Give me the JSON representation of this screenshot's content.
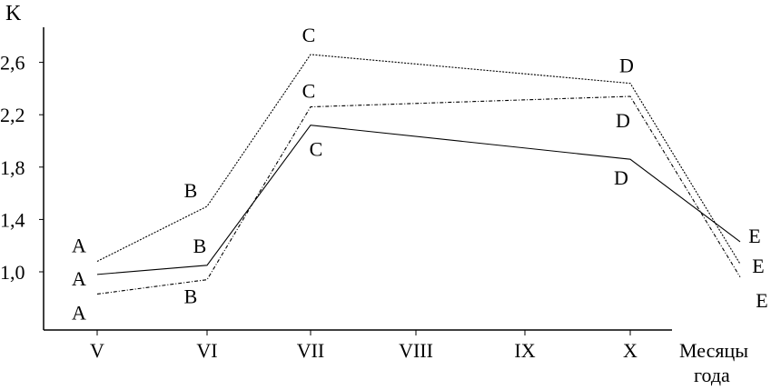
{
  "chart_data": {
    "type": "line",
    "title": "",
    "ylabel": "K",
    "xlabel": [
      "Месяцы",
      "года"
    ],
    "categories": [
      "V",
      "VI",
      "VII",
      "VIII",
      "IX",
      "X",
      ""
    ],
    "yticks": [
      "2,6",
      "2,2",
      "1,8",
      "1,4",
      "1,0"
    ],
    "ytick_values": [
      2.6,
      2.2,
      1.8,
      1.4,
      1.0
    ],
    "ylim": [
      0.6,
      2.8
    ],
    "grid": false,
    "series": [
      {
        "style": "dotted",
        "x": [
          0,
          1,
          2,
          5,
          6
        ],
        "values": [
          1.08,
          1.5,
          2.66,
          2.44,
          1.06
        ],
        "point_labels": [
          "A",
          "B",
          "C",
          "D",
          "E"
        ]
      },
      {
        "style": "dash-dot",
        "x": [
          0,
          1,
          2,
          5,
          6
        ],
        "values": [
          0.83,
          0.94,
          2.26,
          2.34,
          0.96
        ],
        "point_labels": [
          "A",
          "B",
          "C",
          "D",
          "E"
        ]
      },
      {
        "style": "solid",
        "x": [
          0,
          1,
          2,
          5,
          6
        ],
        "values": [
          0.98,
          1.05,
          2.12,
          1.86,
          1.23
        ],
        "point_labels": [
          "A",
          "B",
          "C",
          "D",
          "E"
        ]
      }
    ],
    "line_color": "#000000"
  }
}
